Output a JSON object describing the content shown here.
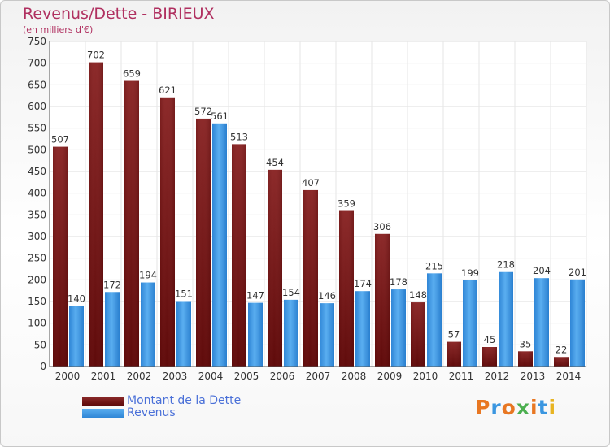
{
  "title": "Revenus/Dette - BIRIEUX",
  "subtitle": "(en milliers d'€)",
  "logo": {
    "text": "Proxiti"
  },
  "colors": {
    "dette": "#7a1515",
    "revenus": "#3a96e0",
    "title": "#b03060",
    "legend_text": "#4a70d8"
  },
  "chart_data": {
    "type": "bar",
    "title": "Revenus/Dette - BIRIEUX",
    "subtitle": "(en milliers d'€)",
    "categories": [
      "2000",
      "2001",
      "2002",
      "2003",
      "2004",
      "2005",
      "2006",
      "2007",
      "2008",
      "2009",
      "2010",
      "2011",
      "2012",
      "2013",
      "2014"
    ],
    "series": [
      {
        "name": "Montant de la Dette",
        "values": [
          507,
          702,
          659,
          621,
          572,
          513,
          454,
          407,
          359,
          306,
          148,
          57,
          45,
          35,
          22
        ]
      },
      {
        "name": "Revenus",
        "values": [
          140,
          172,
          194,
          151,
          561,
          147,
          154,
          146,
          174,
          178,
          215,
          199,
          218,
          204,
          201
        ]
      }
    ],
    "ylim": [
      0,
      750
    ],
    "yticks": [
      0,
      50,
      100,
      150,
      200,
      250,
      300,
      350,
      400,
      450,
      500,
      550,
      600,
      650,
      700,
      750
    ],
    "grid": true,
    "legend_position": "bottom-left"
  }
}
